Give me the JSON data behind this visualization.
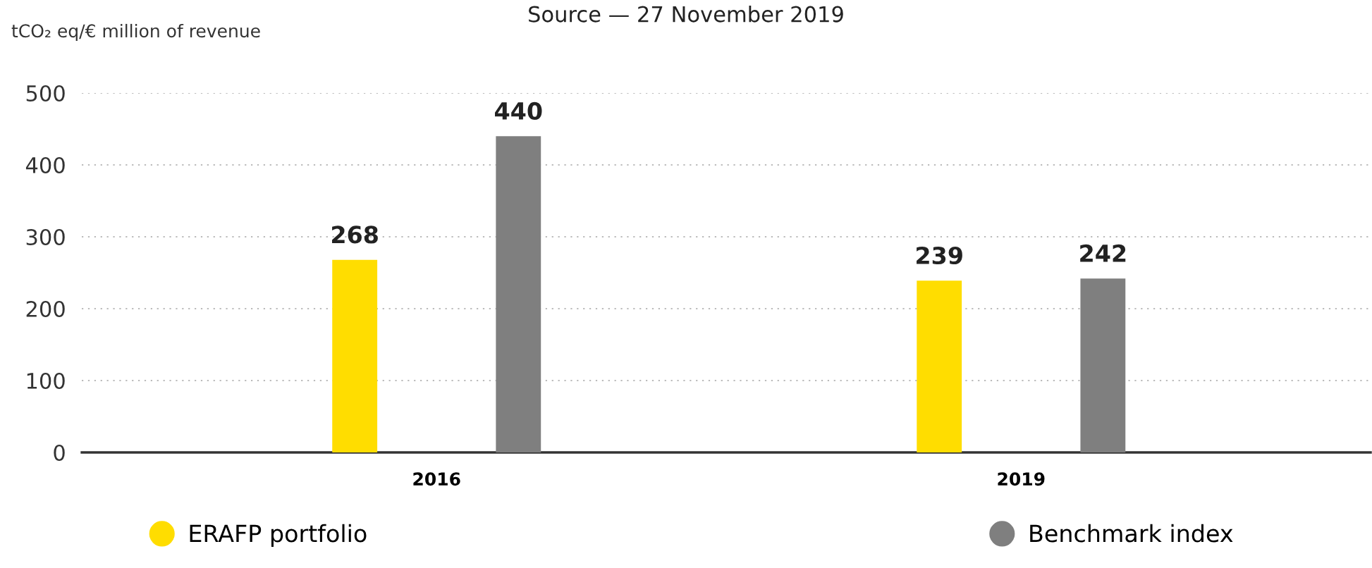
{
  "chart_data": {
    "type": "bar",
    "title": "Source — 27 November 2019",
    "ylabel": "tCO₂ eq/€ million of revenue",
    "categories": [
      "2016",
      "2019"
    ],
    "series": [
      {
        "name": "ERAFP portfolio",
        "color": "#ffdd00",
        "values": [
          268,
          239
        ]
      },
      {
        "name": "Benchmark index",
        "color": "#7f7f7f",
        "values": [
          440,
          242
        ]
      }
    ],
    "ylim": [
      0,
      500
    ],
    "yticks": [
      0,
      100,
      200,
      300,
      400,
      500
    ],
    "grid": "y",
    "legend": "bottom",
    "data_labels": true
  }
}
